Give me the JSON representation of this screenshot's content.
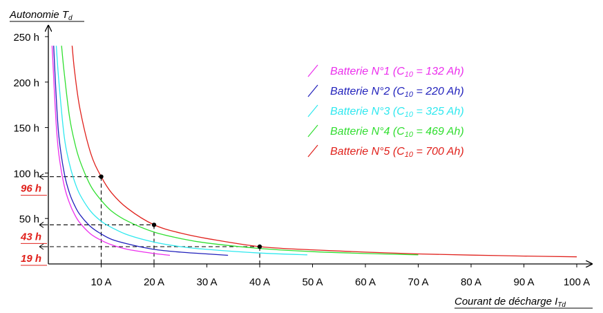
{
  "chart_data": {
    "type": "line",
    "ylabel": {
      "main": "Autonomie T",
      "sub": "d"
    },
    "xlabel": {
      "main": "Courant de décharge I",
      "sub": "Td"
    },
    "xlim": [
      0,
      100
    ],
    "ylim": [
      0,
      250
    ],
    "x_ticks": [
      {
        "value": 10,
        "label": "10 A"
      },
      {
        "value": 20,
        "label": "20 A"
      },
      {
        "value": 30,
        "label": "30 A"
      },
      {
        "value": 40,
        "label": "40 A"
      },
      {
        "value": 50,
        "label": "50 A"
      },
      {
        "value": 60,
        "label": "60 A"
      },
      {
        "value": 70,
        "label": "70 A"
      },
      {
        "value": 80,
        "label": "80 A"
      },
      {
        "value": 90,
        "label": "90 A"
      },
      {
        "value": 100,
        "label": "100 A"
      }
    ],
    "y_ticks": [
      {
        "value": 50,
        "label": "50 h"
      },
      {
        "value": 100,
        "label": "100 h"
      },
      {
        "value": 150,
        "label": "150 h"
      },
      {
        "value": 200,
        "label": "200 h"
      },
      {
        "value": 250,
        "label": "250 h"
      }
    ],
    "grid": false,
    "legend_position": "top-right",
    "series": [
      {
        "name": "Batterie N°1 (C10 = 132 Ah)",
        "label_prefix": "Batterie N°1 (C",
        "label_sub": "10",
        "label_suffix": " = 132 Ah)",
        "color": "#ec2ded",
        "x": [
          0.7,
          1,
          1.5,
          2,
          3,
          4,
          5,
          6,
          8,
          10,
          12,
          15,
          20,
          23
        ],
        "y": [
          240,
          205,
          152,
          120,
          86,
          67,
          54,
          45,
          33,
          26,
          21,
          16,
          11.5,
          9.5
        ]
      },
      {
        "name": "Batterie N°2 (C10 = 220 Ah)",
        "label_prefix": "Batterie N°2 (C",
        "label_sub": "10",
        "label_suffix": " = 220 Ah)",
        "color": "#1f1fbb",
        "x": [
          1,
          1.5,
          2,
          3,
          4,
          5,
          6,
          8,
          10,
          12,
          15,
          20,
          25,
          30,
          34
        ],
        "y": [
          240,
          182,
          140,
          100,
          78,
          64,
          54,
          41,
          33,
          27,
          22,
          16,
          13,
          11,
          9.5
        ]
      },
      {
        "name": "Batterie N°3 (C10 = 325 Ah)",
        "label_prefix": "Batterie N°3 (C",
        "label_sub": "10",
        "label_suffix": " = 325 Ah)",
        "color": "#2ee8ef",
        "x": [
          1.5,
          2,
          3,
          4,
          5,
          6,
          8,
          10,
          12,
          15,
          20,
          25,
          30,
          40,
          49
        ],
        "y": [
          240,
          200,
          140,
          110,
          90,
          76,
          58,
          47,
          40,
          32,
          24,
          19,
          16,
          12,
          10
        ]
      },
      {
        "name": "Batterie N°4 (C10 = 469 Ah)",
        "label_prefix": "Batterie N°4 (C",
        "label_sub": "10",
        "label_suffix": " = 469 Ah)",
        "color": "#2fdf2f",
        "x": [
          2.5,
          3,
          4,
          5,
          6,
          8,
          10,
          12,
          15,
          20,
          25,
          30,
          40,
          50,
          60,
          70
        ],
        "y": [
          240,
          210,
          162,
          133,
          113,
          86,
          70,
          58,
          47,
          35,
          28,
          23,
          17,
          13.5,
          11.5,
          10
        ]
      },
      {
        "name": "Batterie N°5 (C10 = 700 Ah)",
        "label_prefix": "Batterie N°5 (C",
        "label_sub": "10",
        "label_suffix": " = 700 Ah)",
        "color": "#e0201b",
        "x": [
          4.5,
          5,
          6,
          8,
          10,
          12,
          15,
          20,
          25,
          30,
          40,
          50,
          60,
          70,
          80,
          90,
          100
        ],
        "y": [
          240,
          210,
          170,
          122,
          96,
          78,
          61,
          43,
          34,
          28,
          19,
          15.5,
          13,
          11,
          9.7,
          8.7,
          7.8
        ]
      }
    ],
    "annotations": [
      {
        "label": "96 h",
        "x": 10,
        "y": 96
      },
      {
        "label": "43 h",
        "x": 20,
        "y": 43
      },
      {
        "label": "19 h",
        "x": 40,
        "y": 19
      }
    ]
  }
}
